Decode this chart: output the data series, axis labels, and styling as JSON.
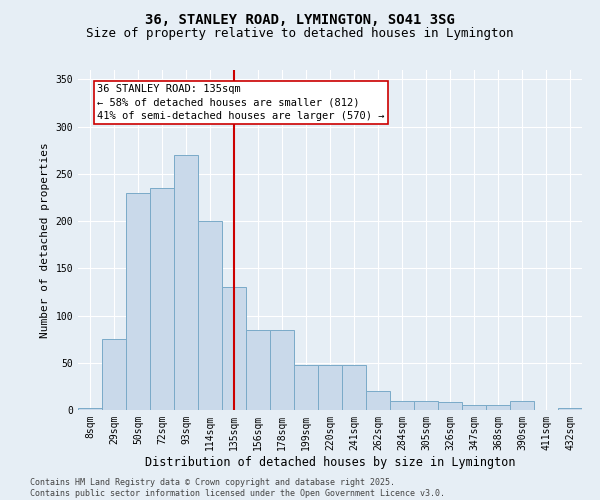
{
  "title1": "36, STANLEY ROAD, LYMINGTON, SO41 3SG",
  "title2": "Size of property relative to detached houses in Lymington",
  "xlabel": "Distribution of detached houses by size in Lymington",
  "ylabel": "Number of detached properties",
  "bar_labels": [
    "8sqm",
    "29sqm",
    "50sqm",
    "72sqm",
    "93sqm",
    "114sqm",
    "135sqm",
    "156sqm",
    "178sqm",
    "199sqm",
    "220sqm",
    "241sqm",
    "262sqm",
    "284sqm",
    "305sqm",
    "326sqm",
    "347sqm",
    "368sqm",
    "390sqm",
    "411sqm",
    "432sqm"
  ],
  "bar_values": [
    2,
    75,
    230,
    235,
    270,
    200,
    130,
    85,
    85,
    48,
    48,
    48,
    20,
    10,
    10,
    8,
    5,
    5,
    10,
    0,
    2
  ],
  "bar_color": "#c9d9ea",
  "bar_edge_color": "#7aaac8",
  "vline_index": 6,
  "vline_color": "#cc0000",
  "annotation_line1": "36 STANLEY ROAD: 135sqm",
  "annotation_line2": "← 58% of detached houses are smaller (812)",
  "annotation_line3": "41% of semi-detached houses are larger (570) →",
  "annotation_box_color": "#ffffff",
  "annotation_edge_color": "#cc0000",
  "ylim": [
    0,
    360
  ],
  "yticks": [
    0,
    50,
    100,
    150,
    200,
    250,
    300,
    350
  ],
  "bg_color": "#e6eef5",
  "grid_color": "#ffffff",
  "footer": "Contains HM Land Registry data © Crown copyright and database right 2025.\nContains public sector information licensed under the Open Government Licence v3.0.",
  "title1_fontsize": 10,
  "title2_fontsize": 9,
  "xlabel_fontsize": 8.5,
  "ylabel_fontsize": 8,
  "tick_fontsize": 7,
  "annotation_fontsize": 7.5,
  "footer_fontsize": 6
}
